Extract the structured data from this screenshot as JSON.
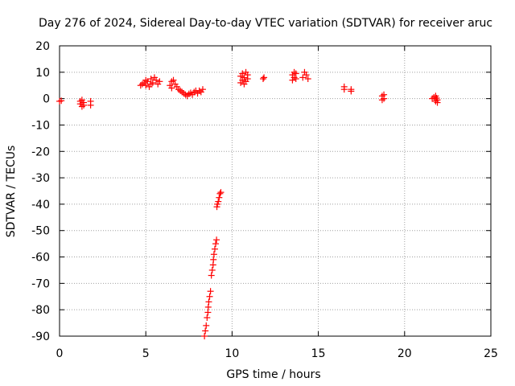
{
  "chart_data": {
    "type": "scatter",
    "title": "Day 276 of 2024, Sidereal Day-to-day VTEC variation (SDTVAR) for receiver aruc",
    "xlabel": "GPS time / hours",
    "ylabel": "SDTVAR / TECUs",
    "xlim": [
      0,
      25
    ],
    "ylim": [
      -90,
      20
    ],
    "xticks": [
      0,
      5,
      10,
      15,
      20,
      25
    ],
    "yticks": [
      20,
      10,
      0,
      -10,
      -20,
      -30,
      -40,
      -50,
      -60,
      -70,
      -80,
      -90
    ],
    "grid": true,
    "marker": "plus",
    "color": "#ff0000",
    "series": [
      {
        "name": "SDTVAR",
        "points": [
          [
            0.0,
            -1.0
          ],
          [
            0.1,
            -0.8
          ],
          [
            1.2,
            -1.0
          ],
          [
            1.2,
            -2.0
          ],
          [
            1.3,
            -3.0
          ],
          [
            1.3,
            -0.5
          ],
          [
            1.4,
            -1.5
          ],
          [
            1.4,
            -2.5
          ],
          [
            1.8,
            -2.5
          ],
          [
            1.8,
            -1.0
          ],
          [
            4.7,
            5.0
          ],
          [
            4.8,
            5.5
          ],
          [
            4.9,
            6.0
          ],
          [
            5.0,
            5.0
          ],
          [
            5.0,
            7.0
          ],
          [
            5.1,
            6.5
          ],
          [
            5.2,
            4.5
          ],
          [
            5.3,
            5.5
          ],
          [
            5.3,
            7.5
          ],
          [
            5.4,
            6.0
          ],
          [
            5.5,
            8.0
          ],
          [
            5.6,
            7.0
          ],
          [
            5.7,
            5.5
          ],
          [
            5.8,
            6.5
          ],
          [
            6.4,
            5.0
          ],
          [
            6.5,
            6.5
          ],
          [
            6.5,
            4.0
          ],
          [
            6.6,
            7.0
          ],
          [
            6.7,
            5.5
          ],
          [
            6.8,
            4.5
          ],
          [
            6.9,
            3.5
          ],
          [
            7.0,
            3.0
          ],
          [
            7.1,
            2.5
          ],
          [
            7.2,
            2.0
          ],
          [
            7.3,
            1.5
          ],
          [
            7.4,
            1.0
          ],
          [
            7.5,
            1.8
          ],
          [
            7.6,
            2.2
          ],
          [
            7.7,
            1.5
          ],
          [
            7.8,
            2.5
          ],
          [
            7.9,
            3.0
          ],
          [
            8.0,
            2.0
          ],
          [
            8.1,
            3.0
          ],
          [
            8.2,
            2.5
          ],
          [
            8.3,
            3.5
          ],
          [
            8.4,
            -90.0
          ],
          [
            8.45,
            -88.0
          ],
          [
            8.5,
            -86.0
          ],
          [
            8.55,
            -83.0
          ],
          [
            8.6,
            -81.0
          ],
          [
            8.62,
            -79.0
          ],
          [
            8.65,
            -77.0
          ],
          [
            8.7,
            -75.0
          ],
          [
            8.75,
            -73.0
          ],
          [
            8.8,
            -67.0
          ],
          [
            8.85,
            -65.0
          ],
          [
            8.9,
            -63.0
          ],
          [
            8.92,
            -61.0
          ],
          [
            8.95,
            -59.0
          ],
          [
            9.0,
            -57.0
          ],
          [
            9.05,
            -55.0
          ],
          [
            9.1,
            -53.5
          ],
          [
            9.12,
            -41.0
          ],
          [
            9.15,
            -40.0
          ],
          [
            9.2,
            -39.0
          ],
          [
            9.25,
            -37.5
          ],
          [
            9.3,
            -36.0
          ],
          [
            9.35,
            -35.5
          ],
          [
            10.5,
            6.0
          ],
          [
            10.5,
            8.5
          ],
          [
            10.6,
            7.0
          ],
          [
            10.6,
            9.5
          ],
          [
            10.7,
            5.5
          ],
          [
            10.7,
            8.0
          ],
          [
            10.8,
            10.0
          ],
          [
            10.8,
            6.5
          ],
          [
            10.9,
            9.0
          ],
          [
            10.9,
            7.5
          ],
          [
            11.8,
            7.5
          ],
          [
            11.85,
            8.0
          ],
          [
            13.5,
            7.0
          ],
          [
            13.5,
            9.0
          ],
          [
            13.6,
            8.0
          ],
          [
            13.6,
            10.0
          ],
          [
            13.7,
            7.5
          ],
          [
            13.7,
            9.5
          ],
          [
            14.1,
            8.0
          ],
          [
            14.2,
            10.0
          ],
          [
            14.3,
            9.0
          ],
          [
            14.4,
            7.5
          ],
          [
            16.5,
            4.5
          ],
          [
            16.5,
            3.5
          ],
          [
            16.9,
            3.5
          ],
          [
            16.9,
            2.8
          ],
          [
            18.7,
            -0.5
          ],
          [
            18.7,
            1.0
          ],
          [
            18.8,
            0.0
          ],
          [
            18.8,
            1.5
          ],
          [
            21.6,
            0.0
          ],
          [
            21.7,
            0.5
          ],
          [
            21.8,
            -1.0
          ],
          [
            21.8,
            1.0
          ],
          [
            21.9,
            -0.5
          ],
          [
            21.9,
            -1.5
          ],
          [
            21.85,
            0.2
          ]
        ]
      }
    ]
  }
}
